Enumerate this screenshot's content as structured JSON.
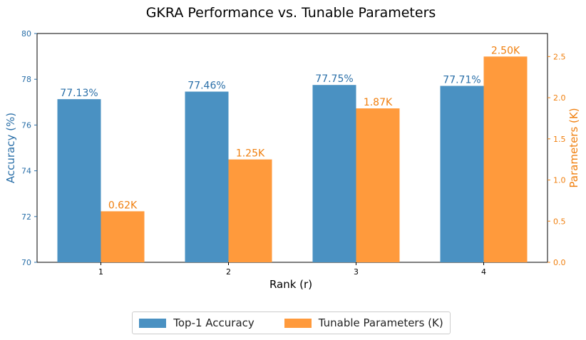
{
  "chart_data": {
    "type": "bar",
    "title": "GKRA Performance vs. Tunable Parameters",
    "xlabel": "Rank (r)",
    "categories": [
      "1",
      "2",
      "3",
      "4"
    ],
    "series": [
      {
        "name": "Top-1 Accuracy",
        "axis": "left",
        "color": "#4a91c2",
        "label_color": "#2a6fa8",
        "values": [
          77.13,
          77.46,
          77.75,
          77.71
        ],
        "labels": [
          "77.13%",
          "77.46%",
          "77.75%",
          "77.71%"
        ]
      },
      {
        "name": "Tunable Parameters (K)",
        "axis": "right",
        "color": "#ff9a3c",
        "label_color": "#f07f0e",
        "values": [
          0.62,
          1.25,
          1.87,
          2.5
        ],
        "labels": [
          "0.62K",
          "1.25K",
          "1.87K",
          "2.50K"
        ]
      }
    ],
    "y_left": {
      "label": "Accuracy (%)",
      "ylim": [
        70,
        80
      ],
      "ticks": [
        70,
        72,
        74,
        76,
        78,
        80
      ],
      "color": "#2a6fa8"
    },
    "y_right": {
      "label": "Parameters (K)",
      "ylim": [
        0,
        2.78
      ],
      "ticks": [
        "0.0",
        "0.5",
        "1.0",
        "1.5",
        "2.0",
        "2.5"
      ],
      "tick_values": [
        0,
        0.5,
        1.0,
        1.5,
        2.0,
        2.5
      ],
      "color": "#f07f0e"
    },
    "grid": false,
    "legend_position": "bottom-center"
  }
}
